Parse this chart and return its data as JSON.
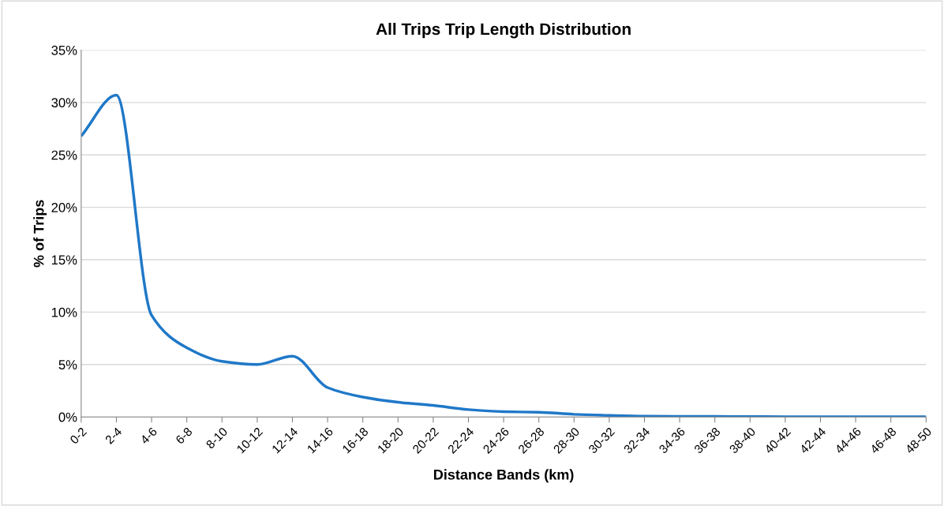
{
  "chart_data": {
    "type": "line",
    "title": "All Trips Trip Length Distribution",
    "xlabel": "Distance Bands (km)",
    "ylabel": "% of Trips",
    "categories": [
      "0-2",
      "2-4",
      "4-6",
      "6-8",
      "8-10",
      "10-12",
      "12-14",
      "14-16",
      "16-18",
      "18-20",
      "20-22",
      "22-24",
      "24-26",
      "26-28",
      "28-30",
      "30-32",
      "32-34",
      "34-36",
      "36-38",
      "38-40",
      "40-42",
      "42-44",
      "44-46",
      "46-48",
      "48-50"
    ],
    "series": [
      {
        "color": "#1f78c8",
        "values": [
          26.8,
          30.7,
          9.7,
          6.6,
          5.3,
          5.0,
          5.8,
          2.8,
          1.9,
          1.4,
          1.1,
          0.7,
          0.5,
          0.45,
          0.25,
          0.15,
          0.08,
          0.06,
          0.05,
          0.03,
          0.02,
          0.02,
          0.01,
          0.01,
          0.01
        ]
      }
    ],
    "ylim": [
      0,
      35
    ],
    "yticks": [
      {
        "value": 0,
        "label": "0%"
      },
      {
        "value": 5,
        "label": "5%"
      },
      {
        "value": 10,
        "label": "10%"
      },
      {
        "value": 15,
        "label": "15%"
      },
      {
        "value": 20,
        "label": "20%"
      },
      {
        "value": 25,
        "label": "25%"
      },
      {
        "value": 30,
        "label": "30%"
      },
      {
        "value": 35,
        "label": "35%"
      }
    ],
    "grid": "y",
    "marker": "none",
    "line_style": "solid"
  }
}
